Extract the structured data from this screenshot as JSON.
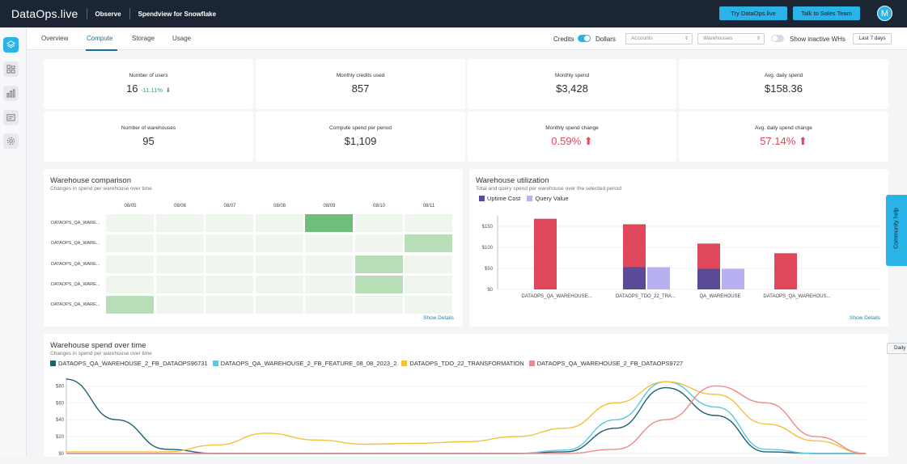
{
  "topbar": {
    "logo": "DataOps.live",
    "product": "Observe",
    "app": "Spendview for Snowflake",
    "try_btn": "Try DataOps.live",
    "sales_btn": "Talk to Sales Team",
    "avatar": "M"
  },
  "sidebar": {
    "icons": [
      "layers-icon",
      "grid-icon",
      "bar-chart-icon",
      "card-icon",
      "gear-icon"
    ]
  },
  "subnav": {
    "tabs": [
      "Overview",
      "Compute",
      "Storage",
      "Usage"
    ],
    "active_tab": "Compute",
    "credits": "Credits",
    "dollars": "Dollars",
    "accounts_placeholder": "Accounts",
    "warehouses_placeholder": "Warehouses",
    "show_inactive": "Show inactive WHs",
    "range": "Last 7 days"
  },
  "kpis": [
    {
      "label": "Number of users",
      "value": "16",
      "delta": "-11.11%"
    },
    {
      "label": "Monthly credits used",
      "value": "857"
    },
    {
      "label": "Monthly spend",
      "value": "$3,428"
    },
    {
      "label": "Avg. daily spend",
      "value": "$158.36"
    },
    {
      "label": "Number of warehouses",
      "value": "95"
    },
    {
      "label": "Compute spend per period",
      "value": "$1,109"
    },
    {
      "label": "Monthly spend change",
      "value": "0.59%"
    },
    {
      "label": "Avg. daily spend change",
      "value": "57.14%"
    }
  ],
  "warehouse_comparison": {
    "title": "Warehouse comparison",
    "subtitle": "Changes in spend per warehouse over time",
    "dates": [
      "08/05",
      "08/06",
      "08/07",
      "08/08",
      "08/09",
      "08/10",
      "08/11"
    ],
    "rows": [
      "DATAOPS_QA_WARE...",
      "DATAOPS_QA_WARE...",
      "DATAOPS_QA_WARE...",
      "DATAOPS_QA_WARE...",
      "DATAOPS_QA_WARE..."
    ],
    "intensity": [
      [
        0.05,
        0.05,
        0.05,
        0.05,
        1.0,
        0.05,
        0.05
      ],
      [
        0.05,
        0.05,
        0.05,
        0.05,
        0.05,
        0.05,
        0.45
      ],
      [
        0.05,
        0.05,
        0.05,
        0.05,
        0.05,
        0.45,
        0.05
      ],
      [
        0.05,
        0.05,
        0.05,
        0.05,
        0.05,
        0.45,
        0.05
      ],
      [
        0.45,
        0.05,
        0.05,
        0.05,
        0.05,
        0.05,
        0.05
      ]
    ],
    "show_details": "Show Details"
  },
  "warehouse_utilization": {
    "title": "Warehouse utilization",
    "subtitle": "Total and query spend per warehouse over the selected period",
    "show_details": "Show Details",
    "chart_data": {
      "type": "bar",
      "categories": [
        "DATAOPS_QA_WAREHOUSE...",
        "DATAOPS_TDO_22_TRA...",
        "QA_WAREHOUSE",
        "DATAOPS_QA_WAREHOUS..."
      ],
      "series": [
        {
          "name": "Uptime Cost",
          "color": "#e0475b",
          "values": [
            168,
            155,
            109,
            86
          ]
        },
        {
          "name": "Uptime Cost",
          "color": "#5b4a96",
          "values": [
            0,
            53,
            49,
            0
          ]
        },
        {
          "name": "Query Value",
          "color": "#b7b1f2",
          "values": [
            0,
            53,
            49,
            0
          ]
        }
      ],
      "legend": [
        "Uptime Cost",
        "Query Value"
      ],
      "legend_colors": [
        "#5b4a96",
        "#b7b1f2"
      ],
      "yticks": [
        "$0",
        "$50",
        "$100",
        "$150"
      ],
      "ylim": [
        0,
        175
      ]
    }
  },
  "spend_over_time": {
    "title": "Warehouse spend over time",
    "subtitle": "Changes in spend per warehouse over time",
    "granularity": "Daily",
    "chart_data": {
      "type": "line",
      "yticks": [
        "$0",
        "$20",
        "$40",
        "$60",
        "$80"
      ],
      "ylim": [
        0,
        90
      ],
      "series": [
        {
          "name": "DATAOPS_QA_WAREHOUSE_2_FB_DATAOPS96731",
          "color": "#1f5f73",
          "values": [
            88,
            40,
            5,
            0,
            0,
            0,
            0,
            0,
            0,
            0,
            2,
            30,
            78,
            45,
            2,
            0,
            0
          ]
        },
        {
          "name": "DATAOPS_QA_WAREHOUSE_2_FB_FEATURE_08_08_2023_2",
          "color": "#5ac8e3",
          "values": [
            0,
            0,
            0,
            0,
            0,
            0,
            0,
            0,
            0,
            0,
            4,
            40,
            85,
            55,
            5,
            0,
            0
          ]
        },
        {
          "name": "DATAOPS_TDO_22_TRANSFORMATION",
          "color": "#f2c23c",
          "values": [
            2,
            2,
            2,
            10,
            24,
            16,
            11,
            12,
            14,
            20,
            30,
            60,
            85,
            70,
            35,
            15,
            0
          ]
        },
        {
          "name": "DATAOPS_QA_WAREHOUSE_2_FB_DATAOPS9727",
          "color": "#ef8a8a",
          "values": [
            0,
            0,
            0,
            0,
            0,
            0,
            0,
            0,
            0,
            0,
            0,
            5,
            40,
            80,
            60,
            20,
            0
          ]
        }
      ]
    }
  },
  "community_help": "Community help"
}
